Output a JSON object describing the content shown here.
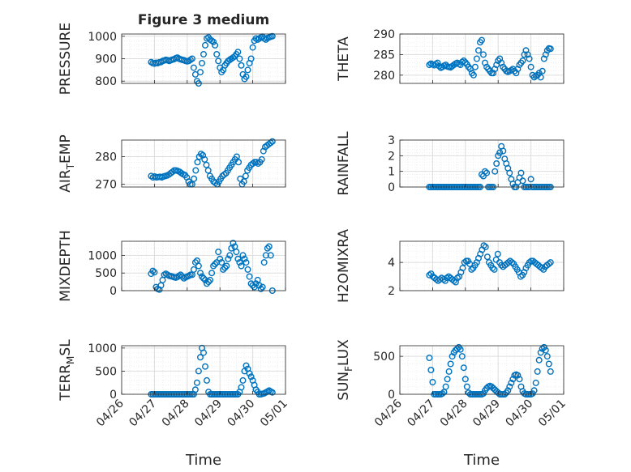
{
  "figure": {
    "title": "Figure 3 medium",
    "xlabel": "Time",
    "x_ticks": [
      "04/26",
      "04/27",
      "04/28",
      "04/29",
      "04/30",
      "05/01"
    ],
    "x_tick_days": [
      26,
      27,
      28,
      29,
      30,
      31
    ],
    "xlim_days": [
      26,
      31
    ],
    "marker_color": "#0072BD"
  },
  "chart_data": [
    {
      "type": "scatter",
      "title": "Figure 3 medium",
      "ylabel": "PRESSURE",
      "ylim": [
        790,
        1010
      ],
      "yticks": [
        800,
        900,
        1000
      ],
      "grid": true,
      "x_start_day": 26.9,
      "x_end_day": 30.6,
      "values": [
        885,
        880,
        878,
        882,
        880,
        884,
        885,
        890,
        892,
        895,
        893,
        890,
        893,
        896,
        898,
        902,
        905,
        900,
        897,
        895,
        893,
        890,
        888,
        890,
        895,
        900,
        860,
        830,
        800,
        790,
        840,
        880,
        920,
        960,
        990,
        995,
        985,
        980,
        975,
        960,
        920,
        890,
        860,
        840,
        850,
        870,
        880,
        890,
        895,
        900,
        905,
        910,
        920,
        930,
        900,
        870,
        830,
        810,
        820,
        850,
        880,
        900,
        950,
        980,
        990,
        985,
        990,
        995,
        998,
        990,
        985,
        992,
        995,
        998,
        1000
      ]
    },
    {
      "type": "scatter",
      "ylabel": "THETA",
      "ylim": [
        278,
        290
      ],
      "yticks": [
        280,
        285,
        290
      ],
      "grid": true,
      "x_start_day": 26.9,
      "x_end_day": 30.6,
      "values": [
        282.5,
        282.8,
        282.6,
        282.4,
        282.7,
        283,
        282.2,
        281.8,
        282,
        282.3,
        282.5,
        282.1,
        282,
        281.9,
        282.2,
        282.5,
        282.8,
        283,
        282.7,
        282.5,
        283.2,
        283.5,
        283.1,
        282.6,
        282,
        281.5,
        280.5,
        280,
        282,
        284,
        286,
        288,
        288.5,
        285,
        283,
        282,
        281.5,
        281,
        280.5,
        280.5,
        281.5,
        282.5,
        283.5,
        284,
        283,
        282,
        281.5,
        281,
        280.8,
        281,
        281.2,
        281.5,
        281,
        280.5,
        281.5,
        282.5,
        283,
        283.5,
        285,
        286,
        285,
        284,
        282,
        280,
        279.5,
        279.8,
        280,
        280.5,
        279.5,
        281,
        284,
        285,
        286,
        286.5,
        286.4
      ]
    },
    {
      "type": "scatter",
      "ylabel": "AIR_TEMP",
      "ylim": [
        269,
        286
      ],
      "yticks": [
        270,
        280
      ],
      "grid": true,
      "x_start_day": 26.9,
      "x_end_day": 30.6,
      "values": [
        273,
        272.5,
        272.8,
        272.5,
        272.6,
        272.7,
        272.5,
        272.8,
        273,
        273.2,
        273.5,
        274,
        274.5,
        275,
        275,
        274.8,
        274.5,
        274,
        273.6,
        273.3,
        272.5,
        271,
        270,
        270,
        272,
        275,
        278,
        280,
        281,
        280.5,
        279,
        277,
        275,
        273,
        272,
        271,
        270.5,
        270,
        271,
        272,
        273,
        273.5,
        274,
        275,
        276,
        277,
        278,
        279,
        280,
        278,
        272,
        270,
        271,
        273,
        275,
        276,
        277,
        277.5,
        278,
        278,
        277.5,
        278,
        279,
        282,
        283.5,
        284,
        284.5,
        285,
        285.5
      ]
    },
    {
      "type": "scatter",
      "ylabel": "RAINFALL",
      "ylim": [
        0,
        3
      ],
      "yticks": [
        0,
        1,
        2,
        3
      ],
      "grid": true,
      "x_start_day": 26.9,
      "x_end_day": 30.6,
      "values": [
        0,
        0,
        0,
        0,
        0,
        0,
        0,
        0,
        0,
        0,
        0,
        0,
        0,
        0,
        0,
        0,
        0,
        0,
        0,
        0,
        0,
        0,
        0,
        0,
        0,
        0,
        0,
        0,
        0,
        0,
        0,
        0,
        0.8,
        0.7,
        1,
        0.9,
        0,
        0,
        0,
        0,
        1,
        1.5,
        2,
        2.2,
        2.6,
        2.3,
        1.8,
        1.5,
        1.2,
        0.9,
        0.5,
        0.2,
        0,
        0,
        0.3,
        0.6,
        0.9,
        0.4,
        0,
        0,
        0,
        0,
        0.5,
        0,
        0,
        0,
        0,
        0,
        0,
        0,
        0,
        0,
        0,
        0,
        0
      ]
    },
    {
      "type": "scatter",
      "ylabel": "MIXDEPTH",
      "ylim": [
        0,
        1400
      ],
      "yticks": [
        0,
        500,
        1000
      ],
      "grid": true,
      "x_start_day": 26.9,
      "x_end_day": 30.6,
      "values": [
        480,
        560,
        520,
        100,
        50,
        30,
        150,
        300,
        450,
        480,
        450,
        420,
        410,
        400,
        380,
        370,
        390,
        420,
        450,
        400,
        350,
        380,
        400,
        420,
        450,
        450,
        600,
        800,
        850,
        700,
        500,
        400,
        350,
        300,
        200,
        250,
        300,
        500,
        700,
        750,
        800,
        1100,
        900,
        800,
        600,
        650,
        700,
        900,
        1000,
        1200,
        1350,
        1250,
        1100,
        900,
        800,
        700,
        1000,
        900,
        800,
        600,
        400,
        200,
        150,
        100,
        200,
        300,
        150,
        50,
        100,
        800,
        1000,
        1200,
        1250,
        1000,
        0
      ]
    },
    {
      "type": "scatter",
      "ylabel": "H2OMIXRA",
      "ylim": [
        2,
        5.5
      ],
      "yticks": [
        2,
        4
      ],
      "grid": true,
      "x_start_day": 26.9,
      "x_end_day": 30.6,
      "values": [
        3.1,
        3.2,
        3,
        2.9,
        2.8,
        2.7,
        2.8,
        2.9,
        2.8,
        2.7,
        2.9,
        3,
        2.9,
        2.8,
        2.7,
        2.6,
        2.9,
        3,
        3.3,
        3.6,
        4,
        4.1,
        4.1,
        3.9,
        3.5,
        3.6,
        3.8,
        4,
        4.3,
        4.6,
        4.9,
        5.2,
        5.1,
        4.4,
        4,
        3.8,
        3.6,
        3.5,
        4.2,
        4.6,
        4,
        3.8,
        3.7,
        3.8,
        3.9,
        4,
        4.1,
        4,
        3.9,
        3.7,
        3.5,
        3.3,
        3,
        3.1,
        3.3,
        3.6,
        3.8,
        4,
        4.1,
        4.1,
        4,
        3.9,
        3.8,
        3.7,
        3.6,
        3.5,
        3.7,
        3.8,
        3.9,
        4
      ]
    },
    {
      "type": "scatter",
      "ylabel": "TERR_MSL",
      "ylim": [
        0,
        1050
      ],
      "yticks": [
        0,
        500,
        1000
      ],
      "grid": true,
      "x_start_day": 26.9,
      "x_end_day": 30.6,
      "values": [
        0,
        0,
        0,
        0,
        0,
        0,
        0,
        0,
        0,
        0,
        0,
        0,
        0,
        0,
        0,
        0,
        0,
        0,
        0,
        0,
        0,
        0,
        0,
        0,
        0,
        0,
        0,
        100,
        250,
        500,
        800,
        1000,
        900,
        600,
        300,
        50,
        0,
        0,
        0,
        0,
        0,
        0,
        0,
        0,
        0,
        0,
        0,
        0,
        0,
        0,
        0,
        0,
        0,
        0,
        50,
        150,
        300,
        500,
        620,
        550,
        450,
        380,
        300,
        200,
        100,
        50,
        0,
        0,
        10,
        20,
        40,
        60,
        80,
        60,
        40
      ]
    },
    {
      "type": "scatter",
      "ylabel": "SUN_FLUX",
      "ylim": [
        0,
        640
      ],
      "yticks": [
        0,
        500
      ],
      "grid": true,
      "x_start_day": 26.9,
      "x_end_day": 30.6,
      "values": [
        480,
        320,
        160,
        0,
        0,
        0,
        0,
        0,
        10,
        30,
        100,
        200,
        300,
        400,
        500,
        550,
        580,
        600,
        620,
        590,
        500,
        350,
        200,
        100,
        20,
        0,
        0,
        0,
        0,
        0,
        0,
        0,
        0,
        10,
        50,
        80,
        100,
        110,
        100,
        80,
        60,
        40,
        20,
        0,
        0,
        0,
        0,
        20,
        50,
        100,
        150,
        200,
        250,
        260,
        250,
        200,
        100,
        40,
        10,
        0,
        0,
        0,
        0,
        10,
        50,
        150,
        300,
        450,
        550,
        600,
        620,
        580,
        500,
        400,
        300
      ]
    }
  ]
}
